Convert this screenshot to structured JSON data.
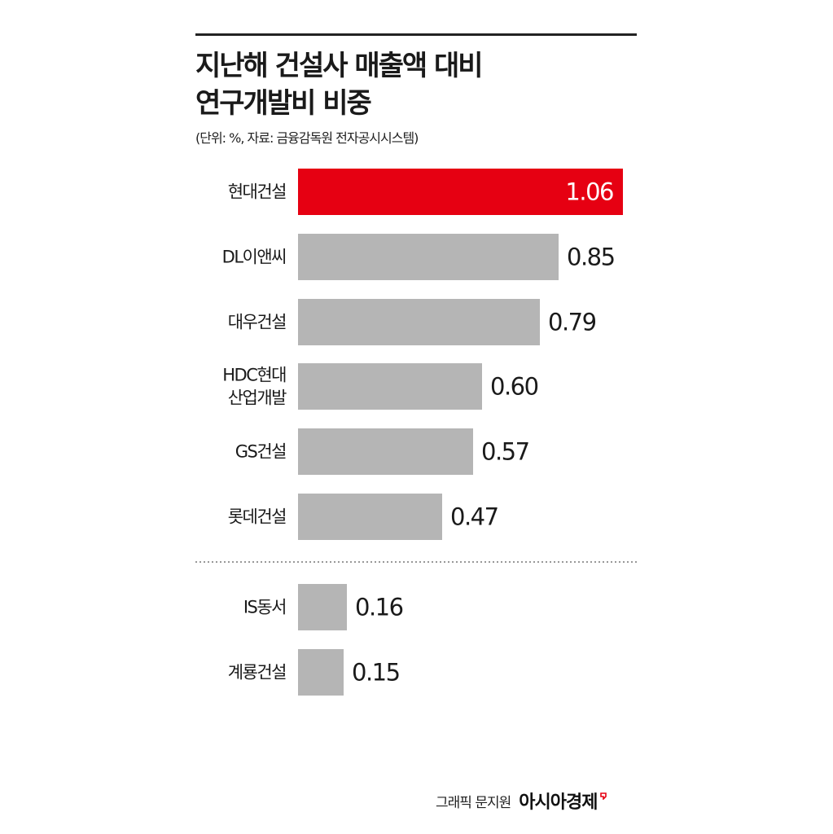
{
  "title_lines": [
    "지난해 건설사 매출액 대비",
    "연구개발비 비중"
  ],
  "subtitle": "(단위: %, 자료: 금융감독원 전자공시시스템)",
  "chart_data": {
    "type": "bar",
    "orientation": "horizontal",
    "title": "지난해 건설사 매출액 대비 연구개발비 비중",
    "subtitle": "(단위: %, 자료: 금융감독원 전자공시시스템)",
    "categories": [
      "현대건설",
      "DL이앤씨",
      "대우건설",
      "HDC현대 산업개발",
      "GS건설",
      "롯데건설",
      "IS동서",
      "계룡건설"
    ],
    "category_lines": [
      [
        "현대건설"
      ],
      [
        "DL이앤씨"
      ],
      [
        "대우건설"
      ],
      [
        "HDC현대",
        "산업개발"
      ],
      [
        "GS건설"
      ],
      [
        "롯데건설"
      ],
      [
        "IS동서"
      ],
      [
        "계룡건설"
      ]
    ],
    "values": [
      1.06,
      0.85,
      0.79,
      0.6,
      0.57,
      0.47,
      0.16,
      0.15
    ],
    "value_labels": [
      "1.06",
      "0.85",
      "0.79",
      "0.60",
      "0.57",
      "0.47",
      "0.16",
      "0.15"
    ],
    "highlight_index": 0,
    "separator_after_index": 5,
    "xlim": [
      0,
      1.06
    ],
    "grid": false,
    "legend": "none",
    "colors": {
      "highlight": "#e60012",
      "bar": "#b5b5b5",
      "label": "#1a1a1a",
      "highlight_label": "#ffffff",
      "separator": "#777777"
    }
  },
  "footer": {
    "credit": "그래픽 문지원",
    "brand": "아시아경제",
    "brand_mark_color": "#e60012"
  }
}
